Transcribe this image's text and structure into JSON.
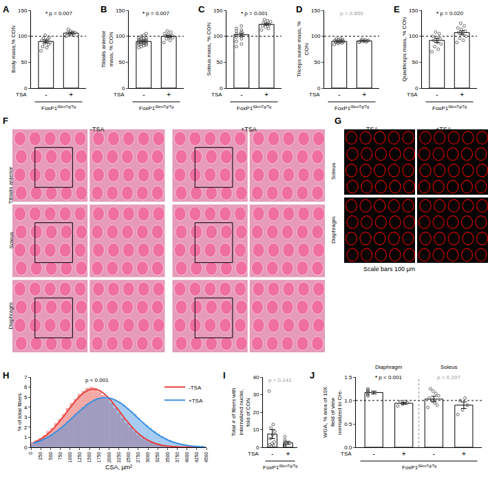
{
  "chart_data": [
    {
      "type": "bar",
      "panel": "A",
      "ylabel": "Body mass,% CON",
      "row_label": "TSA",
      "genotype": {
        "base": "FoxP1",
        "sup": "iSkmTg/Tg"
      },
      "categories": [
        "-",
        "+"
      ],
      "values": [
        90,
        106
      ],
      "errors": [
        3,
        2
      ],
      "points": [
        [
          72,
          78,
          80,
          84,
          86,
          88,
          90,
          92,
          94,
          96,
          98,
          102
        ],
        [
          100,
          102,
          103,
          104,
          106,
          107,
          108,
          110,
          113
        ]
      ],
      "ref_line": 100,
      "star": "*",
      "p_text": "p = 0.007",
      "ylim": [
        0,
        150
      ],
      "yticks": [
        0,
        50,
        100,
        150
      ]
    },
    {
      "type": "bar",
      "panel": "B",
      "ylabel": "Tibialis anterior mass, % CON",
      "row_label": "TSA",
      "genotype": {
        "base": "FoxP1",
        "sup": "iSkmTg/Tg"
      },
      "categories": [
        "-",
        "+"
      ],
      "values": [
        90,
        100
      ],
      "errors": [
        1.2,
        2
      ],
      "points": [
        [
          78,
          80,
          82,
          83,
          84,
          85,
          86,
          86,
          87,
          88,
          88,
          89,
          89,
          90,
          90,
          91,
          91,
          92,
          92,
          93,
          94,
          95,
          96,
          97,
          98,
          100,
          102,
          105
        ],
        [
          88,
          92,
          95,
          97,
          98,
          100,
          101,
          103,
          105,
          108,
          110
        ]
      ],
      "ref_line": 100,
      "star": "*",
      "p_text": "p = 0.007",
      "ylim": [
        0,
        150
      ],
      "yticks": [
        0,
        50,
        100,
        150
      ]
    },
    {
      "type": "bar",
      "panel": "C",
      "ylabel": "Soleus mass, % CON",
      "row_label": "TSA",
      "genotype": {
        "base": "FoxP1",
        "sup": "iSkmTg/Tg"
      },
      "categories": [
        "-",
        "+"
      ],
      "values": [
        103,
        123
      ],
      "errors": [
        3,
        2
      ],
      "points": [
        [
          80,
          85,
          90,
          95,
          98,
          100,
          102,
          103,
          105,
          108,
          110,
          112,
          115,
          120
        ],
        [
          112,
          115,
          118,
          120,
          122,
          124,
          126,
          128,
          130,
          132
        ]
      ],
      "ref_line": 100,
      "star": "*",
      "p_text": "p = 0.001",
      "ylim": [
        0,
        150
      ],
      "yticks": [
        0,
        50,
        100,
        150
      ]
    },
    {
      "type": "bar",
      "panel": "D",
      "ylabel": "Triceps surae mass, % CON",
      "row_label": "TSA",
      "genotype": {
        "base": "FoxP1",
        "sup": "iSkmTg/Tg"
      },
      "categories": [
        "-",
        "+"
      ],
      "values": [
        90,
        91
      ],
      "errors": [
        0.8,
        0.6
      ],
      "points": [
        [
          84,
          86,
          87,
          88,
          88,
          89,
          89,
          90,
          90,
          90,
          91,
          91,
          92,
          92,
          93,
          94,
          95,
          96
        ],
        [
          88,
          89,
          90,
          90,
          91,
          91,
          92,
          92,
          93,
          94
        ]
      ],
      "ref_line": 100,
      "p_text": "p = 0.850",
      "ylim": [
        0,
        150
      ],
      "yticks": [
        0,
        50,
        100,
        150
      ]
    },
    {
      "type": "bar",
      "panel": "E",
      "ylabel": "Quadriceps mass, % CON",
      "row_label": "TSA",
      "genotype": {
        "base": "FoxP1",
        "sup": "iSkmTg/Tg"
      },
      "categories": [
        "-",
        "+"
      ],
      "values": [
        92,
        107
      ],
      "errors": [
        4,
        3.5
      ],
      "points": [
        [
          70,
          75,
          80,
          85,
          88,
          92,
          95,
          98,
          100,
          105,
          108
        ],
        [
          88,
          92,
          96,
          100,
          104,
          107,
          110,
          113,
          116,
          120,
          125
        ]
      ],
      "ref_line": 100,
      "star": "*",
      "p_text": "p = 0.020",
      "ylim": [
        0,
        150
      ],
      "yticks": [
        0,
        50,
        100,
        150
      ]
    },
    {
      "type": "image",
      "panel": "F",
      "columns": [
        "-TSA",
        "+TSA"
      ],
      "rows": [
        "Tibialis anterior",
        "Soleus",
        "Diaphragm"
      ],
      "color": "#e59bb9"
    },
    {
      "type": "image",
      "panel": "G",
      "columns": [
        "-TSA",
        "+TSA"
      ],
      "rows": [
        "Soleus",
        "Diaphragm"
      ],
      "caption": "Scale bars 100 µm",
      "color": "#d40000"
    },
    {
      "type": "histogram",
      "panel": "H",
      "xlabel": "CSA, µm²",
      "ylabel": "% of total fibers",
      "p_text": "p < 0.001",
      "legend": "top right",
      "bins": [
        0,
        100,
        200,
        300,
        400,
        500,
        600,
        700,
        800,
        900,
        1000,
        1100,
        1200,
        1300,
        1400,
        1500,
        1600,
        1700,
        1800,
        1900,
        2000,
        2100,
        2200,
        2300,
        2400,
        2500,
        2600,
        2700,
        2800,
        2900,
        3000,
        3100,
        3200,
        3300,
        3400,
        3500,
        3600,
        3700,
        3800,
        3900,
        4000,
        4100,
        4200,
        4300,
        4400,
        4500
      ],
      "series": [
        {
          "name": "-TSA",
          "color": "#e8413c",
          "counts": [
            0.5,
            0.7,
            0.9,
            1.2,
            1.6,
            1.9,
            2.4,
            2.8,
            3.3,
            3.9,
            4.4,
            4.8,
            5.3,
            5.6,
            5.9,
            6.0,
            5.9,
            5.5,
            5.2,
            4.8,
            4.4,
            3.9,
            3.4,
            2.9,
            2.4,
            2.0,
            1.6,
            1.2,
            0.9,
            0.7,
            0.5,
            0.4,
            0.3,
            0.2,
            0.15,
            0.1,
            0.07,
            0.05,
            0.03,
            0.02,
            0.01,
            0.01,
            0,
            0,
            0
          ],
          "fit": [
            0.43,
            0.6,
            0.81,
            1.07,
            1.39,
            1.76,
            2.19,
            2.66,
            3.16,
            3.67,
            4.18,
            4.66,
            5.08,
            5.42,
            5.66,
            5.78,
            5.78,
            5.66,
            5.42,
            5.08,
            4.66,
            4.18,
            3.67,
            3.16,
            2.66,
            2.19,
            1.76,
            1.39,
            1.07,
            0.81,
            0.6,
            0.43,
            0.31,
            0.21,
            0.14,
            0.1,
            0.06,
            0.04,
            0.02,
            0.01,
            0.01,
            0,
            0,
            0,
            0
          ]
        },
        {
          "name": "+TSA",
          "color": "#3b8fe0",
          "counts": [
            0.3,
            0.5,
            0.7,
            0.9,
            1.1,
            1.3,
            1.6,
            1.9,
            2.2,
            2.6,
            2.9,
            3.3,
            3.6,
            4.0,
            4.3,
            4.5,
            4.8,
            4.9,
            5.0,
            4.9,
            4.8,
            4.7,
            4.5,
            4.2,
            3.9,
            3.6,
            3.3,
            2.9,
            2.5,
            2.2,
            1.9,
            1.6,
            1.3,
            1.1,
            0.9,
            0.7,
            0.5,
            0.4,
            0.3,
            0.25,
            0.2,
            0.15,
            0.1,
            0.08,
            0.05
          ],
          "fit": [
            0.39,
            0.51,
            0.65,
            0.83,
            1.04,
            1.28,
            1.55,
            1.85,
            2.18,
            2.53,
            2.89,
            3.26,
            3.62,
            3.95,
            4.26,
            4.52,
            4.73,
            4.87,
            4.94,
            4.94,
            4.87,
            4.73,
            4.52,
            4.26,
            3.95,
            3.62,
            3.26,
            2.89,
            2.53,
            2.18,
            1.85,
            1.55,
            1.28,
            1.04,
            0.83,
            0.65,
            0.51,
            0.39,
            0.29,
            0.22,
            0.16,
            0.11,
            0.08,
            0.06,
            0.04
          ]
        }
      ],
      "xlim": [
        0,
        4500
      ],
      "xticks": [
        0,
        250,
        500,
        750,
        1000,
        1250,
        1500,
        1750,
        2000,
        2250,
        2500,
        2750,
        3000,
        3250,
        3500,
        3750,
        4000,
        4250,
        4500
      ],
      "ylim": [
        0,
        7
      ],
      "yticks": [
        0,
        1,
        2,
        3,
        4,
        5,
        6,
        7
      ]
    },
    {
      "type": "bar",
      "panel": "I",
      "ylabel": "Total # of fibers with internalized nuclei, fold of CON",
      "row_label": "TSA",
      "genotype": {
        "base": "FoxP1",
        "sup": "iSkmTg/Tg"
      },
      "categories": [
        "-",
        "+"
      ],
      "values": [
        7.5,
        2.5
      ],
      "errors": [
        2.6,
        0.9
      ],
      "points": [
        [
          32,
          13,
          11,
          9,
          7,
          5,
          3,
          2,
          1.5,
          1,
          0.5
        ],
        [
          6,
          4,
          3,
          2,
          1,
          0.5,
          0.3
        ]
      ],
      "p_text": "p = 0.141",
      "ylim": [
        0,
        40
      ],
      "yticks": [
        0,
        10,
        20,
        30,
        40
      ]
    },
    {
      "type": "bar",
      "panel": "J",
      "ylabel": "WGA, % area of 10X field of view normalized to Cre-",
      "row_label": "TSA",
      "genotype": {
        "base": "FoxP1",
        "sup": "iSkmTg/Tg"
      },
      "categories": [
        "-",
        "+",
        "-",
        "+"
      ],
      "values": [
        1.17,
        0.94,
        1.03,
        0.9
      ],
      "errors": [
        0.03,
        0.02,
        0.06,
        0.07
      ],
      "points": [
        [
          1.1,
          1.12,
          1.15,
          1.17,
          1.2,
          1.22,
          1.25
        ],
        [
          0.88,
          0.92,
          0.95,
          0.97,
          0.98
        ],
        [
          0.85,
          0.9,
          0.95,
          1.0,
          1.05,
          1.1,
          1.15,
          1.2,
          1.25
        ],
        [
          0.7,
          0.8,
          0.9,
          1.0,
          1.05
        ]
      ],
      "groups": [
        {
          "name": "Diaphragm",
          "star": "*",
          "p_text": "p < 0.001"
        },
        {
          "name": "Soleus",
          "p_text": "p = 0.207"
        }
      ],
      "ref_line": 1,
      "ylim": [
        0,
        1.5
      ],
      "yticks": [
        {
          "value": 0,
          "label": "0.0"
        },
        {
          "value": 0.5,
          "label": "0.5"
        },
        {
          "value": 1,
          "label": "1.0"
        },
        {
          "value": 1.5,
          "label": "1.5"
        }
      ]
    }
  ]
}
